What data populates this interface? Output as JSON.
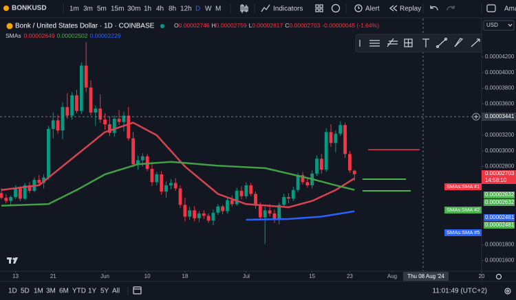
{
  "toolbar": {
    "symbol": "BONKUSD",
    "intervals": [
      "1m",
      "3m",
      "5m",
      "15m",
      "30m",
      "1h",
      "4h",
      "8h",
      "12h",
      "D",
      "W",
      "M"
    ],
    "indicators": "Indicators",
    "alert": "Alert",
    "replay": "Replay",
    "account": "Ama"
  },
  "legend": {
    "title": "Bonk / United States Dollar · 1D · COINBASE",
    "ohlc": [
      [
        "O",
        "0.00002746"
      ],
      [
        "H",
        "0.00002759"
      ],
      [
        "L",
        "0.00002617"
      ],
      [
        "C",
        "0.00002703"
      ]
    ],
    "change": "-0.00000045 (-1.64%)",
    "indicator": "SMAs",
    "sma_values": [
      "0.00002649",
      "0.00002502",
      "0.00002229"
    ]
  },
  "currency": "USD",
  "last_price": {
    "price": "0.00002703",
    "countdown": "14:58:10"
  },
  "price_labels": [
    "0.00002632",
    "0.00002632",
    "0.00002481",
    "0.00002481"
  ],
  "crosshair": {
    "price": "0.00003441",
    "date": "Thu 08 Aug '24"
  },
  "ranges": [
    "1D",
    "5D",
    "1M",
    "3M",
    "6M",
    "YTD",
    "1Y",
    "5Y",
    "All"
  ],
  "clock": "11:01:49 (UTC+2)",
  "chart_data": {
    "type": "candlestick",
    "up_color": "#089981",
    "down_color": "#f23645",
    "xlim": [
      "2024-05-10",
      "2024-08-20"
    ],
    "xticks": [
      {
        "value": "2024-05-13",
        "label": "13"
      },
      {
        "value": "2024-05-21",
        "label": "21"
      },
      {
        "value": "2024-06-01",
        "label": "Jun"
      },
      {
        "value": "2024-06-10",
        "label": "10"
      },
      {
        "value": "2024-06-18",
        "label": "18"
      },
      {
        "value": "2024-07-01",
        "label": "Jul"
      },
      {
        "value": "2024-07-15",
        "label": "15"
      },
      {
        "value": "2024-07-23",
        "label": "23"
      },
      {
        "value": "2024-08-01",
        "label": "Aug"
      },
      {
        "value": "2024-08-20",
        "label": "20"
      }
    ],
    "ylim": [
      1.463e-05,
      4.691e-05
    ],
    "yticks": [
      {
        "value": 4.2e-05,
        "label": "0.00004200"
      },
      {
        "value": 4e-05,
        "label": "0.00004000"
      },
      {
        "value": 3.8e-05,
        "label": "0.00003800"
      },
      {
        "value": 3.6e-05,
        "label": "0.00003600"
      },
      {
        "value": 3.2e-05,
        "label": "0.00003200"
      },
      {
        "value": 3e-05,
        "label": "0.00003000"
      },
      {
        "value": 2.8e-05,
        "label": "0.00002800"
      },
      {
        "value": 1.8e-05,
        "label": "0.00001800"
      },
      {
        "value": 1.6e-05,
        "label": "0.00001600"
      }
    ],
    "x": [
      "2024-05-10",
      "2024-05-11",
      "2024-05-12",
      "2024-05-13",
      "2024-05-14",
      "2024-05-15",
      "2024-05-16",
      "2024-05-17",
      "2024-05-18",
      "2024-05-19",
      "2024-05-20",
      "2024-05-21",
      "2024-05-22",
      "2024-05-23",
      "2024-05-24",
      "2024-05-25",
      "2024-05-26",
      "2024-05-27",
      "2024-05-28",
      "2024-05-29",
      "2024-05-30",
      "2024-05-31",
      "2024-06-01",
      "2024-06-02",
      "2024-06-03",
      "2024-06-04",
      "2024-06-05",
      "2024-06-06",
      "2024-06-07",
      "2024-06-08",
      "2024-06-09",
      "2024-06-10",
      "2024-06-11",
      "2024-06-12",
      "2024-06-13",
      "2024-06-14",
      "2024-06-15",
      "2024-06-16",
      "2024-06-17",
      "2024-06-18",
      "2024-06-19",
      "2024-06-20",
      "2024-06-21",
      "2024-06-22",
      "2024-06-23",
      "2024-06-24",
      "2024-06-25",
      "2024-06-26",
      "2024-06-27",
      "2024-06-28",
      "2024-06-29",
      "2024-06-30",
      "2024-07-01",
      "2024-07-02",
      "2024-07-03",
      "2024-07-04",
      "2024-07-05",
      "2024-07-06",
      "2024-07-07",
      "2024-07-08",
      "2024-07-09",
      "2024-07-10",
      "2024-07-11",
      "2024-07-12",
      "2024-07-13",
      "2024-07-14",
      "2024-07-15",
      "2024-07-16",
      "2024-07-17",
      "2024-07-18",
      "2024-07-19",
      "2024-07-20",
      "2024-07-21",
      "2024-07-22",
      "2024-07-23",
      "2024-07-24"
    ],
    "ohlc": [
      [
        2.46e-05,
        2.52e-05,
        2.38e-05,
        2.4e-05
      ],
      [
        2.4e-05,
        2.45e-05,
        2.33e-05,
        2.36e-05
      ],
      [
        2.36e-05,
        2.43e-05,
        2.31e-05,
        2.41e-05
      ],
      [
        2.41e-05,
        2.56e-05,
        2.39e-05,
        2.52e-05
      ],
      [
        2.52e-05,
        2.55e-05,
        2.36e-05,
        2.39e-05
      ],
      [
        2.39e-05,
        2.59e-05,
        2.37e-05,
        2.56e-05
      ],
      [
        2.56e-05,
        2.6e-05,
        2.46e-05,
        2.49e-05
      ],
      [
        2.49e-05,
        2.66e-05,
        2.47e-05,
        2.63e-05
      ],
      [
        2.63e-05,
        2.69e-05,
        2.56e-05,
        2.59e-05
      ],
      [
        2.59e-05,
        2.7e-05,
        2.52e-05,
        2.66e-05
      ],
      [
        2.66e-05,
        3.32e-05,
        2.63e-05,
        3.28e-05
      ],
      [
        3.28e-05,
        3.49e-05,
        3.16e-05,
        3.39e-05
      ],
      [
        3.39e-05,
        3.46e-05,
        3.22e-05,
        3.26e-05
      ],
      [
        3.26e-05,
        3.62e-05,
        3.15e-05,
        3.56e-05
      ],
      [
        3.56e-05,
        3.74e-05,
        3.41e-05,
        3.45e-05
      ],
      [
        3.45e-05,
        3.75e-05,
        3.4e-05,
        3.71e-05
      ],
      [
        3.71e-05,
        3.78e-05,
        3.48e-05,
        3.51e-05
      ],
      [
        3.51e-05,
        4.13e-05,
        3.47e-05,
        4.09e-05
      ],
      [
        4.09e-05,
        4.39e-05,
        3.75e-05,
        3.81e-05
      ],
      [
        3.81e-05,
        3.9e-05,
        3.45e-05,
        3.49e-05
      ],
      [
        3.49e-05,
        3.58e-05,
        3.32e-05,
        3.54e-05
      ],
      [
        3.54e-05,
        3.72e-05,
        3.36e-05,
        3.4e-05
      ],
      [
        3.4e-05,
        3.48e-05,
        3.27e-05,
        3.34e-05
      ],
      [
        3.34e-05,
        3.44e-05,
        3.19e-05,
        3.23e-05
      ],
      [
        3.23e-05,
        3.45e-05,
        3.18e-05,
        3.41e-05
      ],
      [
        3.41e-05,
        3.52e-05,
        3.33e-05,
        3.37e-05
      ],
      [
        3.37e-05,
        3.5e-05,
        3.25e-05,
        3.45e-05
      ],
      [
        3.45e-05,
        3.56e-05,
        3.13e-05,
        3.16e-05
      ],
      [
        3.16e-05,
        3.24e-05,
        2.79e-05,
        2.83e-05
      ],
      [
        2.83e-05,
        2.94e-05,
        2.76e-05,
        2.88e-05
      ],
      [
        2.88e-05,
        2.97e-05,
        2.8e-05,
        2.93e-05
      ],
      [
        2.93e-05,
        2.96e-05,
        2.74e-05,
        2.77e-05
      ],
      [
        2.77e-05,
        2.86e-05,
        2.55e-05,
        2.6e-05
      ],
      [
        2.6e-05,
        2.73e-05,
        2.56e-05,
        2.7e-05
      ],
      [
        2.7e-05,
        2.74e-05,
        2.44e-05,
        2.48e-05
      ],
      [
        2.48e-05,
        2.61e-05,
        2.4e-05,
        2.56e-05
      ],
      [
        2.56e-05,
        2.64e-05,
        2.51e-05,
        2.59e-05
      ],
      [
        2.59e-05,
        2.65e-05,
        2.49e-05,
        2.52e-05
      ],
      [
        2.52e-05,
        2.56e-05,
        2.27e-05,
        2.31e-05
      ],
      [
        2.31e-05,
        2.4e-05,
        2.1e-05,
        2.16e-05
      ],
      [
        2.16e-05,
        2.29e-05,
        2.12e-05,
        2.24e-05
      ],
      [
        2.24e-05,
        2.29e-05,
        2.1e-05,
        2.14e-05
      ],
      [
        2.14e-05,
        2.23e-05,
        2.09e-05,
        2.2e-05
      ],
      [
        2.2e-05,
        2.24e-05,
        2.13e-05,
        2.17e-05
      ],
      [
        2.17e-05,
        2.2e-05,
        2.08e-05,
        2.11e-05
      ],
      [
        2.11e-05,
        2.25e-05,
        2.05e-05,
        2.21e-05
      ],
      [
        2.21e-05,
        2.32e-05,
        2.18e-05,
        2.29e-05
      ],
      [
        2.29e-05,
        2.31e-05,
        2.19e-05,
        2.23e-05
      ],
      [
        2.23e-05,
        2.4e-05,
        2.2e-05,
        2.37e-05
      ],
      [
        2.37e-05,
        2.43e-05,
        2.29e-05,
        2.32e-05
      ],
      [
        2.32e-05,
        2.53e-05,
        2.3e-05,
        2.49e-05
      ],
      [
        2.49e-05,
        2.55e-05,
        2.38e-05,
        2.42e-05
      ],
      [
        2.42e-05,
        2.6e-05,
        2.39e-05,
        2.56e-05
      ],
      [
        2.56e-05,
        2.59e-05,
        2.42e-05,
        2.45e-05
      ],
      [
        2.45e-05,
        2.48e-05,
        2.26e-05,
        2.3e-05
      ],
      [
        2.3e-05,
        2.34e-05,
        2.11e-05,
        2.15e-05
      ],
      [
        2.15e-05,
        2.29e-05,
        1.81e-05,
        2.24e-05
      ],
      [
        2.24e-05,
        2.32e-05,
        2.16e-05,
        2.2e-05
      ],
      [
        2.2e-05,
        2.25e-05,
        2.08e-05,
        2.12e-05
      ],
      [
        2.12e-05,
        2.34e-05,
        2.06e-05,
        2.31e-05
      ],
      [
        2.31e-05,
        2.45e-05,
        2.28e-05,
        2.41e-05
      ],
      [
        2.41e-05,
        2.46e-05,
        2.33e-05,
        2.39e-05
      ],
      [
        2.39e-05,
        2.54e-05,
        2.36e-05,
        2.5e-05
      ],
      [
        2.5e-05,
        2.72e-05,
        2.47e-05,
        2.69e-05
      ],
      [
        2.69e-05,
        2.73e-05,
        2.57e-05,
        2.6e-05
      ],
      [
        2.6e-05,
        2.66e-05,
        2.53e-05,
        2.56e-05
      ],
      [
        2.56e-05,
        2.75e-05,
        2.52e-05,
        2.71e-05
      ],
      [
        2.71e-05,
        2.94e-05,
        2.68e-05,
        2.9e-05
      ],
      [
        2.9e-05,
        2.96e-05,
        2.71e-05,
        2.76e-05
      ],
      [
        2.76e-05,
        3.29e-05,
        2.73e-05,
        3.24e-05
      ],
      [
        3.24e-05,
        3.34e-05,
        3.05e-05,
        3.1e-05
      ],
      [
        3.1e-05,
        3.26e-05,
        2.98e-05,
        3.22e-05
      ],
      [
        3.22e-05,
        3.38e-05,
        3.19e-05,
        3.33e-05
      ],
      [
        3.33e-05,
        3.36e-05,
        2.91e-05,
        2.96e-05
      ],
      [
        2.96e-05,
        3e-05,
        2.72e-05,
        2.75e-05
      ],
      [
        2.746e-05,
        2.759e-05,
        2.617e-05,
        2.703e-05
      ]
    ],
    "series": [
      {
        "name": "SMAs:SMA #1",
        "color": "#d94452",
        "x": [
          "2024-05-10",
          "2024-05-18",
          "2024-05-26",
          "2024-06-01",
          "2024-06-07",
          "2024-06-12",
          "2024-06-18",
          "2024-06-25",
          "2024-07-01",
          "2024-07-10",
          "2024-07-15",
          "2024-07-20",
          "2024-07-24"
        ],
        "values": [
          2.5e-05,
          2.56e-05,
          2.95e-05,
          3.24e-05,
          3.36e-05,
          3.2e-05,
          2.8e-05,
          2.45e-05,
          2.32e-05,
          2.28e-05,
          2.36e-05,
          2.5e-05,
          2.649e-05
        ]
      },
      {
        "name": "SMAs:SMA #2",
        "color": "#43a047",
        "x": [
          "2024-05-10",
          "2024-05-20",
          "2024-05-26",
          "2024-06-01",
          "2024-06-08",
          "2024-06-15",
          "2024-06-25",
          "2024-07-05",
          "2024-07-15",
          "2024-07-20",
          "2024-07-24"
        ],
        "values": [
          2.3e-05,
          2.32e-05,
          2.5e-05,
          2.7e-05,
          2.83e-05,
          2.86e-05,
          2.81e-05,
          2.78e-05,
          2.64e-05,
          2.56e-05,
          2.502e-05
        ]
      },
      {
        "name": "SMAs:SMA #5",
        "color": "#2962ff",
        "x": [
          "2024-07-01",
          "2024-07-10",
          "2024-07-17",
          "2024-07-24"
        ],
        "values": [
          2.12e-05,
          2.13e-05,
          2.16e-05,
          2.229e-05
        ]
      }
    ]
  }
}
